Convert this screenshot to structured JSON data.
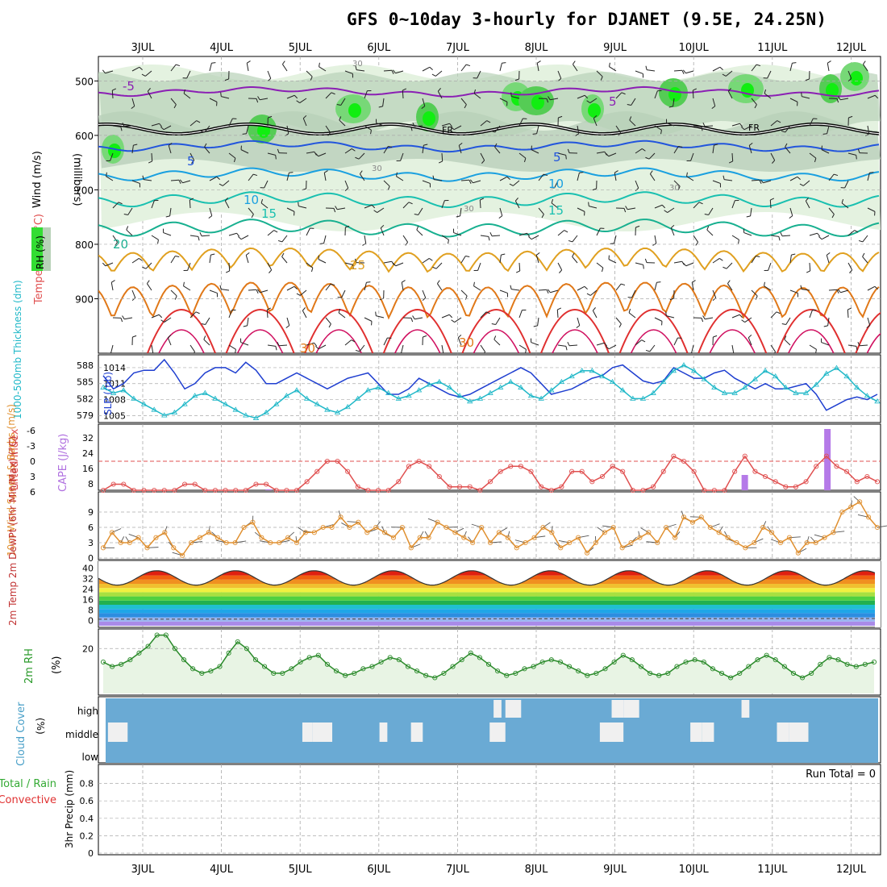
{
  "title": "GFS 0~10day 3-hourly for DJANET (9.5E, 24.25N)",
  "dates": [
    "3JUL",
    "4JUL",
    "5JUL",
    "6JUL",
    "7JUL",
    "8JUL",
    "9JUL",
    "10JUL",
    "11JUL",
    "12JUL"
  ],
  "chart_data": [
    {
      "type": "contour",
      "panel": "upper-air",
      "ylabel_parts": [
        "Wind (m/s)",
        "Temperature (°C)",
        "RH (%)"
      ],
      "yunit": "(millibars)",
      "yticks": [
        500,
        600,
        700,
        800,
        900
      ],
      "ylim": [
        1000,
        455
      ],
      "freezing_label": "FR",
      "temperature_labels": [
        "-5",
        "5",
        "5",
        "10",
        "10",
        "15",
        "15",
        "20",
        "25",
        "30",
        "30"
      ],
      "rh_labels": [
        "30",
        "30",
        "30",
        "30"
      ],
      "isotherms": [
        {
          "label": "-5",
          "color": "#8b1fb4",
          "base": 520,
          "amp": 8
        },
        {
          "label": "5",
          "color": "#2255dd",
          "base": 620,
          "amp": 10
        },
        {
          "label": "10",
          "color": "#1aa0e0",
          "base": 672,
          "amp": 14
        },
        {
          "label": "15",
          "color": "#19c0b0",
          "base": 718,
          "amp": 18
        },
        {
          "label": "20",
          "color": "#18b090",
          "base": 770,
          "amp": 22
        },
        {
          "label": "25",
          "color": "#e0a020",
          "base": 840,
          "amp": 28
        },
        {
          "label": "30",
          "color": "#e07818",
          "base": 920,
          "amp": 45
        }
      ]
    },
    {
      "type": "line",
      "panel": "slp-thickness",
      "ylabel_left": "1000-500mb Thickness (dm)",
      "ylabel_right": "SLP (mb)",
      "thickness_ticks": [
        588,
        585,
        582,
        579
      ],
      "slp_ticks": [
        1014,
        1011,
        1008,
        1005
      ],
      "series": [
        {
          "name": "SLP (mb)",
          "color": "#1f3fd0",
          "values": [
            1012.5,
            1010,
            1011,
            1013,
            1013.5,
            1013.5,
            1015.5,
            1013,
            1010,
            1011,
            1013,
            1014,
            1014,
            1013,
            1015,
            1013.5,
            1011,
            1011,
            1012,
            1013,
            1012,
            1011,
            1010,
            1011,
            1012,
            1012.5,
            1013,
            1011,
            1009,
            1009,
            1010,
            1012,
            1011,
            1010,
            1009,
            1008.5,
            1009,
            1010,
            1011,
            1012,
            1013,
            1014,
            1013,
            1011,
            1009,
            1009.5,
            1010,
            1011,
            1012,
            1012.5,
            1014,
            1014.5,
            1013,
            1011.5,
            1011,
            1011.5,
            1014,
            1013,
            1012,
            1012,
            1013,
            1013.5,
            1012,
            1011,
            1010,
            1011,
            1010,
            1010,
            1010.5,
            1011,
            1009,
            1006,
            1007,
            1008,
            1008.5,
            1008,
            1009
          ]
        },
        {
          "name": "1000-500mb Thickness (dm)",
          "color": "#20b8c8",
          "values": [
            584,
            583,
            583.5,
            582,
            581,
            580,
            579,
            579.5,
            581,
            582.5,
            583,
            582,
            581,
            580,
            579,
            578.5,
            579.5,
            581,
            582.5,
            583.5,
            582,
            581,
            580,
            579.5,
            580.5,
            582,
            583.5,
            584,
            583,
            582,
            582.5,
            583.5,
            584.5,
            585,
            584,
            582.5,
            581.5,
            582,
            583,
            584,
            585,
            584,
            582.5,
            582,
            583.5,
            585,
            586,
            587,
            587,
            586,
            585,
            583.5,
            582,
            582,
            583,
            585,
            587,
            588,
            587,
            585.5,
            584,
            583,
            583,
            584,
            585.5,
            587,
            586,
            584,
            583,
            583,
            584.5,
            586.5,
            587.5,
            586,
            584,
            582.5,
            581.5
          ]
        }
      ]
    },
    {
      "type": "line",
      "panel": "stability",
      "ylabel_left": "Lifted Index",
      "ylabel_right": "CAPE (J/kg)",
      "li_ticks": [
        "-6",
        "-3",
        "0",
        "3",
        "6"
      ],
      "cape_ticks": [
        "32",
        "24",
        "16",
        "8"
      ],
      "lifted_index": [
        6,
        4.5,
        4.5,
        6,
        7,
        7,
        7,
        6,
        4.5,
        4.5,
        6,
        7,
        7,
        7,
        6.5,
        4.5,
        4.5,
        6,
        7,
        6,
        4,
        2,
        0,
        0,
        2,
        5,
        7,
        7,
        6,
        4,
        1,
        0,
        1,
        3,
        5,
        5,
        5,
        6,
        4,
        2,
        1,
        1,
        2,
        5,
        7,
        5,
        2,
        2,
        4,
        3,
        1,
        2,
        6,
        7,
        5,
        2,
        -1,
        0,
        2,
        6,
        7,
        6,
        2,
        -1,
        2,
        3,
        4,
        5,
        5,
        4,
        1,
        -1,
        1,
        2,
        4,
        3,
        4
      ],
      "cape_bars": [
        {
          "day": 1.6,
          "value": 0.5
        },
        {
          "day": 7.65,
          "value": 8
        },
        {
          "day": 8.7,
          "value": 32
        }
      ]
    },
    {
      "type": "line",
      "panel": "10m-wind",
      "ylabel": "10m Wind Speed & Barbs (m/s)",
      "yticks": [
        0,
        3,
        6,
        9
      ],
      "ylim": [
        0,
        12
      ],
      "wind_speed": [
        2,
        5,
        3,
        3,
        4,
        2,
        4,
        5,
        2,
        0.5,
        3,
        4,
        5,
        4,
        3,
        3,
        6,
        7,
        4,
        3,
        3,
        4,
        3,
        5,
        5,
        6,
        6,
        8,
        6,
        7,
        5,
        6,
        5,
        4,
        6,
        2,
        4,
        4,
        7,
        6,
        5,
        4,
        3,
        6,
        3,
        5,
        4,
        2,
        3,
        4,
        6,
        5,
        2,
        3,
        4,
        1,
        3,
        5,
        6,
        2,
        3,
        4,
        5,
        3,
        6,
        4,
        8,
        7,
        8,
        6,
        5,
        4,
        3,
        2,
        3,
        6,
        5,
        3,
        4,
        1,
        3,
        3,
        4,
        5,
        9,
        10,
        11,
        8,
        6
      ]
    },
    {
      "type": "area",
      "panel": "2m-temp",
      "ylabel": "2m Temp 2m DewPt (6hr Min/Max) (°C)",
      "yticks": [
        0,
        8,
        16,
        24,
        32,
        40
      ],
      "ylim": [
        -4,
        44
      ],
      "temp_min": 27,
      "temp_max": 38,
      "dewpoint_approx": 1
    },
    {
      "type": "line",
      "panel": "2m-rh",
      "ylabel": "2m RH (%)",
      "yticks": [
        20
      ],
      "ylim": [
        0,
        28
      ],
      "values": [
        14,
        12,
        13,
        15,
        18,
        21,
        26,
        26,
        20,
        15,
        11,
        9,
        10,
        12,
        18,
        23,
        20,
        15,
        12,
        9,
        9,
        11,
        14,
        16,
        17,
        13,
        10,
        8,
        9,
        11,
        12,
        14,
        16,
        15,
        12,
        10,
        8,
        7,
        9,
        12,
        15,
        18,
        16,
        13,
        10,
        8,
        9,
        11,
        12,
        14,
        15,
        14,
        12,
        10,
        8,
        9,
        11,
        14,
        17,
        15,
        12,
        9,
        8,
        9,
        12,
        14,
        15,
        14,
        11,
        9,
        7,
        9,
        12,
        15,
        17,
        15,
        12,
        9,
        7,
        9,
        13,
        16,
        15,
        13,
        12,
        13,
        14
      ]
    },
    {
      "type": "bar",
      "panel": "cloud-cover",
      "ylabel": "Cloud Cover (%)",
      "levels": [
        "high",
        "middle",
        "low"
      ],
      "middle_blocks": [
        [
          0.05,
          0.3
        ],
        [
          2.52,
          2.65
        ],
        [
          2.65,
          2.9
        ],
        [
          3.5,
          3.6
        ],
        [
          3.9,
          4.05
        ],
        [
          4.9,
          5.1
        ],
        [
          6.3,
          6.6
        ],
        [
          7.45,
          7.6
        ],
        [
          7.6,
          7.75
        ],
        [
          8.55,
          8.7
        ],
        [
          8.7,
          8.95
        ]
      ],
      "high_blocks": [
        [
          4.95,
          5.05
        ],
        [
          5.1,
          5.3
        ],
        [
          6.45,
          6.6
        ],
        [
          6.6,
          6.8
        ],
        [
          8.1,
          8.2
        ]
      ]
    },
    {
      "type": "bar",
      "panel": "precip",
      "ylabel": "3hr Precip (mm)",
      "legend": [
        "Total / Rain",
        "Convective"
      ],
      "yticks": [
        "0",
        "0.2",
        "0.4",
        "0.6",
        "0.8"
      ],
      "ylim": [
        0,
        1
      ],
      "run_total": "Run Total = 0",
      "values": []
    }
  ]
}
